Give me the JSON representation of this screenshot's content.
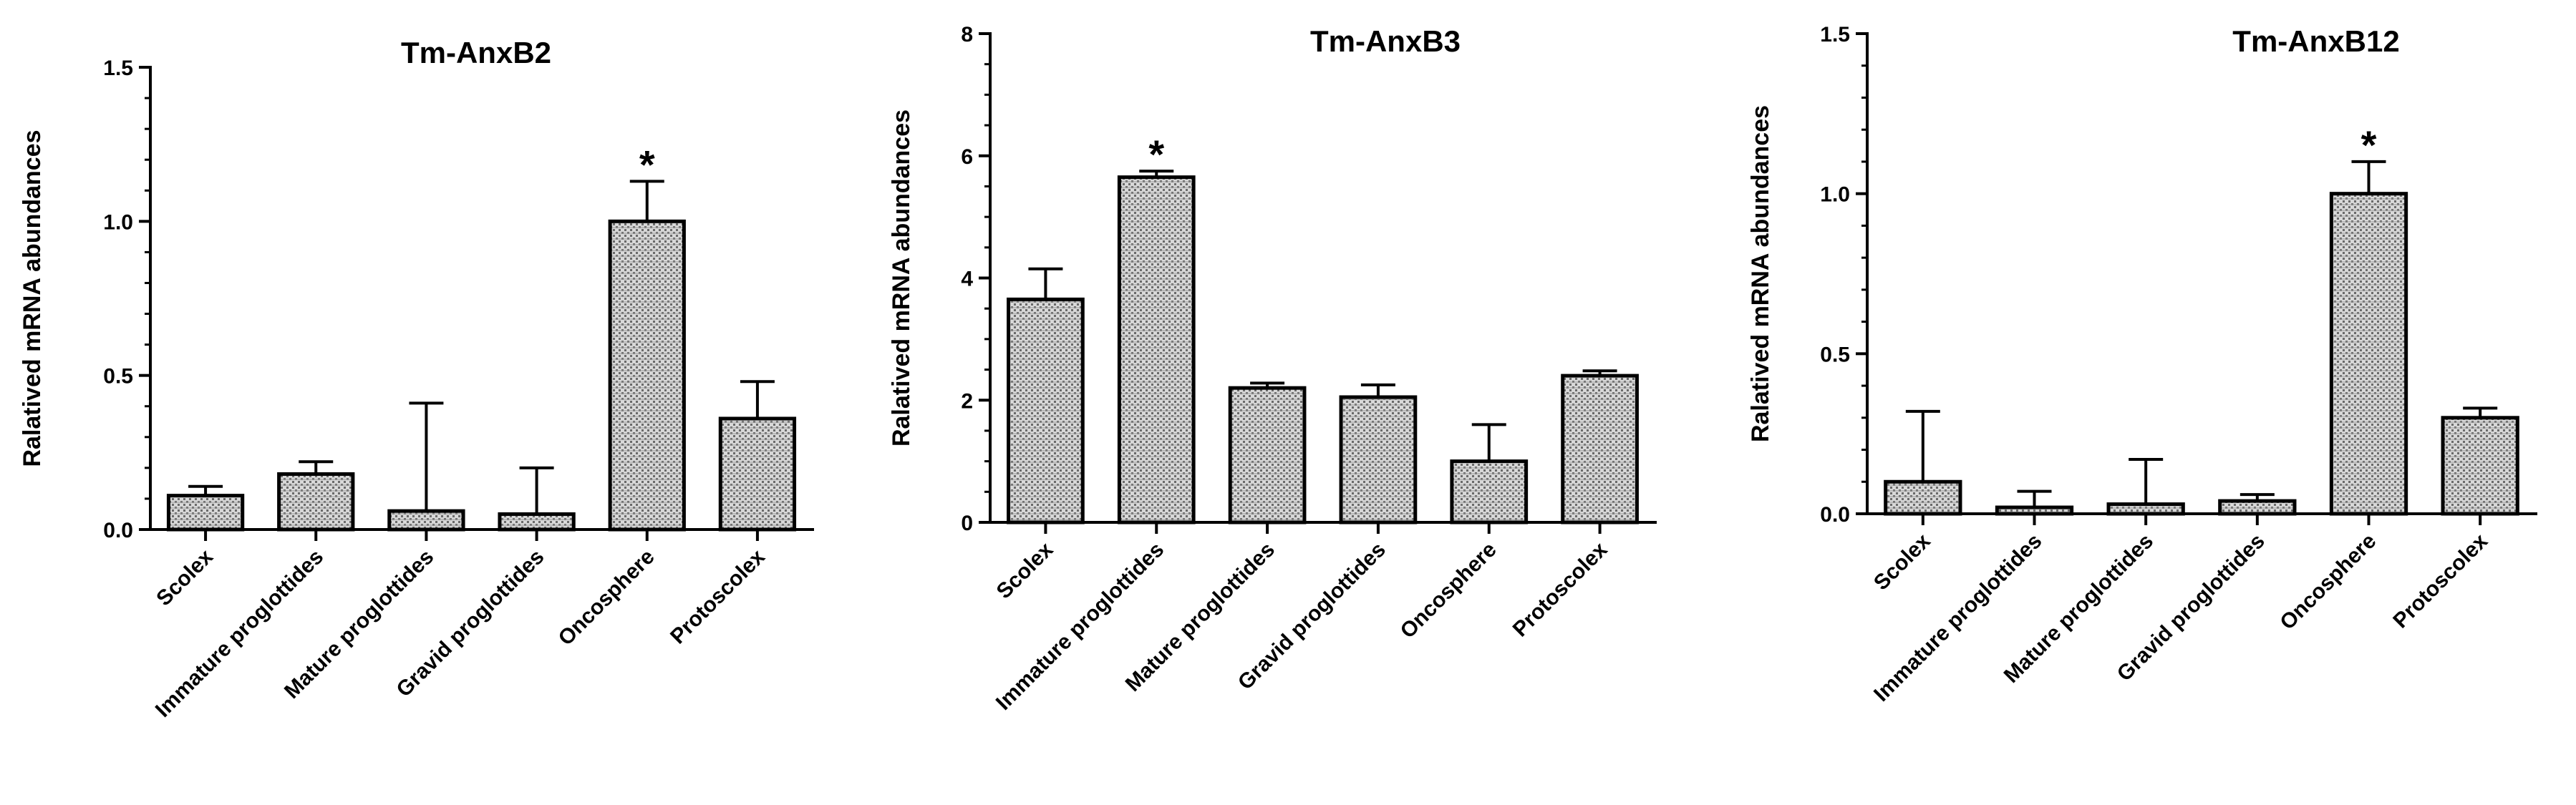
{
  "chart_data": [
    {
      "type": "bar",
      "title": "Tm-AnxB2",
      "xlabel": "",
      "ylabel": "Ralatived mRNA abundances",
      "categories": [
        "Scolex",
        "Immature proglottides",
        "Mature proglottides",
        "Gravid proglottides",
        "Oncosphere",
        "Protoscolex"
      ],
      "values": [
        0.11,
        0.18,
        0.06,
        0.05,
        1.0,
        0.36
      ],
      "errors": [
        0.03,
        0.04,
        0.35,
        0.15,
        0.13,
        0.12
      ],
      "significance": [
        "",
        "",
        "",
        "",
        "*",
        ""
      ],
      "ylim": [
        0,
        1.5
      ],
      "yticks": [
        0,
        0.5,
        1.0,
        1.5
      ],
      "ytick_labels": [
        "0.0",
        "0.5",
        "1.0",
        "1.5"
      ],
      "minor_step": 0.1
    },
    {
      "type": "bar",
      "title": "Tm-AnxB3",
      "xlabel": "",
      "ylabel": "Ralatived mRNA abundances",
      "categories": [
        "Scolex",
        "Immature proglottides",
        "Mature proglottides",
        "Gravid proglottides",
        "Oncosphere",
        "Protoscolex"
      ],
      "values": [
        3.65,
        5.65,
        2.2,
        2.05,
        1.0,
        2.4
      ],
      "errors": [
        0.5,
        0.1,
        0.08,
        0.2,
        0.6,
        0.08
      ],
      "significance": [
        "",
        "*",
        "",
        "",
        "",
        ""
      ],
      "ylim": [
        0,
        8
      ],
      "yticks": [
        0,
        2,
        4,
        6,
        8
      ],
      "ytick_labels": [
        "0",
        "2",
        "4",
        "6",
        "8"
      ],
      "minor_step": 0.5
    },
    {
      "type": "bar",
      "title": "Tm-AnxB12",
      "xlabel": "",
      "ylabel": "Ralatived mRNA abundances",
      "categories": [
        "Scolex",
        "Immature proglottides",
        "Mature proglottides",
        "Gravid proglottides",
        "Oncosphere",
        "Protoscolex"
      ],
      "values": [
        0.1,
        0.02,
        0.03,
        0.04,
        1.0,
        0.3
      ],
      "errors": [
        0.22,
        0.05,
        0.14,
        0.02,
        0.1,
        0.03
      ],
      "significance": [
        "",
        "",
        "",
        "",
        "*",
        ""
      ],
      "ylim": [
        0,
        1.5
      ],
      "yticks": [
        0,
        0.5,
        1.0,
        1.5
      ],
      "ytick_labels": [
        "0.0",
        "0.5",
        "1.0",
        "1.5"
      ],
      "minor_step": 0.1
    }
  ]
}
